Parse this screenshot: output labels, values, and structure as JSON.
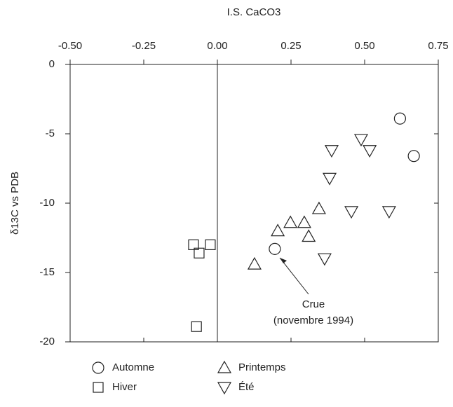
{
  "chart_data": {
    "type": "scatter",
    "xlabel": "I.S. CaCO3",
    "ylabel": "δ13C vs PDB",
    "xlim": [
      -0.5,
      0.75
    ],
    "ylim": [
      -20,
      0
    ],
    "xticks": [
      {
        "value": -0.5,
        "label": "-0.50"
      },
      -0.25,
      {
        "value": 0,
        "label": "0.00"
      },
      0.25,
      {
        "value": 0.5,
        "label": "0.50"
      },
      0.75
    ],
    "yticks": [
      0,
      -5,
      -10,
      -15,
      -20
    ],
    "series": [
      {
        "name": "Automne",
        "marker": "circle",
        "color": "#222222",
        "x": [
          0.62,
          0.667,
          0.195
        ],
        "values": [
          -3.9,
          -6.6,
          -13.3
        ]
      },
      {
        "name": "Hiver",
        "marker": "square",
        "color": "#222222",
        "x": [
          -0.081,
          -0.062,
          -0.024,
          -0.071
        ],
        "values": [
          -13.0,
          -13.6,
          -13.0,
          -18.9
        ]
      },
      {
        "name": "Printemps",
        "marker": "triangle-up",
        "color": "#222222",
        "x": [
          0.126,
          0.205,
          0.248,
          0.295,
          0.31,
          0.345
        ],
        "values": [
          -14.4,
          -12.0,
          -11.4,
          -11.4,
          -12.4,
          -10.4
        ]
      },
      {
        "name": "Été",
        "marker": "triangle-down",
        "color": "#222222",
        "x": [
          0.388,
          0.381,
          0.488,
          0.517,
          0.455,
          0.583,
          0.364
        ],
        "values": [
          -6.2,
          -8.2,
          -5.4,
          -6.2,
          -10.6,
          -10.6,
          -14.0
        ]
      }
    ],
    "annotations": [
      {
        "lines": [
          "Crue",
          "(novembre 1994)"
        ]
      }
    ]
  }
}
